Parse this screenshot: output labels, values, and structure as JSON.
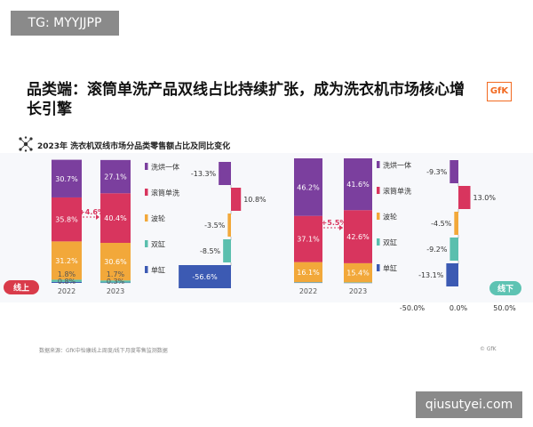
{
  "watermarks": {
    "top": "TG: MYYJJPP",
    "bottom": "qiusutyei.com"
  },
  "header": {
    "title": "品类端：滚筒单洗产品双线占比持续扩张，成为洗衣机市场核心增长引擎",
    "logo": "GfK",
    "subtitle": "2023年 洗衣机双线市场分品类零售额占比及同比变化"
  },
  "footer": {
    "source": "数据来源：GfK中怡康线上周度/线下月度零售监测数据",
    "copyright": "© GfK"
  },
  "colors": {
    "洗烘一体": "#7b3f9e",
    "滚筒单洗": "#d8355e",
    "波轮": "#f2a83a",
    "双缸": "#5bbfae",
    "单缸": "#3c5ab3",
    "online_badge": "#d93b4a",
    "offline_badge": "#5ec3b3"
  },
  "chart_data": [
    {
      "type": "bar",
      "channel": "线上",
      "stacked": true,
      "categories": [
        "2022",
        "2023"
      ],
      "series": [
        {
          "name": "单缸",
          "values": [
            0.8,
            0.3
          ],
          "labels": [
            "0.8%",
            "0.3%"
          ]
        },
        {
          "name": "双缸",
          "values": [
            1.8,
            1.7
          ],
          "labels": [
            "1.8%",
            "1.7%"
          ]
        },
        {
          "name": "波轮",
          "values": [
            31.2,
            30.6
          ],
          "labels": [
            "31.2%",
            "30.6%"
          ]
        },
        {
          "name": "滚筒单洗",
          "values": [
            35.8,
            40.4
          ],
          "labels": [
            "35.8%",
            "40.4%"
          ]
        },
        {
          "name": "洗烘一体",
          "values": [
            30.7,
            27.1
          ],
          "labels": [
            "30.7%",
            "27.1%"
          ]
        }
      ],
      "annotation": "+4.6%",
      "yoy": {
        "categories": [
          "洗烘一体",
          "滚筒单洗",
          "波轮",
          "双缸",
          "单缸"
        ],
        "values": [
          -13.3,
          10.8,
          -3.5,
          -8.5,
          -56.6
        ],
        "labels": [
          "-13.3%",
          "10.8%",
          "-3.5%",
          "-8.5%",
          "-56.6%"
        ]
      }
    },
    {
      "type": "bar",
      "channel": "线下",
      "stacked": true,
      "categories": [
        "2022",
        "2023"
      ],
      "series": [
        {
          "name": "单缸",
          "values": [
            0.3,
            0.2
          ],
          "labels": [
            "",
            ""
          ]
        },
        {
          "name": "双缸",
          "values": [
            0.3,
            0.2
          ],
          "labels": [
            "",
            ""
          ]
        },
        {
          "name": "波轮",
          "values": [
            16.1,
            15.4
          ],
          "labels": [
            "16.1%",
            "15.4%"
          ]
        },
        {
          "name": "滚筒单洗",
          "values": [
            37.1,
            42.6
          ],
          "labels": [
            "37.1%",
            "42.6%"
          ]
        },
        {
          "name": "洗烘一体",
          "values": [
            46.2,
            41.6
          ],
          "labels": [
            "46.2%",
            "41.6%"
          ]
        }
      ],
      "annotation": "+5.5%",
      "yoy": {
        "categories": [
          "洗烘一体",
          "滚筒单洗",
          "波轮",
          "双缸",
          "单缸"
        ],
        "values": [
          -9.3,
          13.0,
          -4.5,
          -9.2,
          -13.1
        ],
        "labels": [
          "-9.3%",
          "13.0%",
          "-4.5%",
          "-9.2%",
          "-13.1%"
        ]
      },
      "xaxis_ticks": [
        "-50.0%",
        "0.0%",
        "50.0%"
      ]
    }
  ]
}
